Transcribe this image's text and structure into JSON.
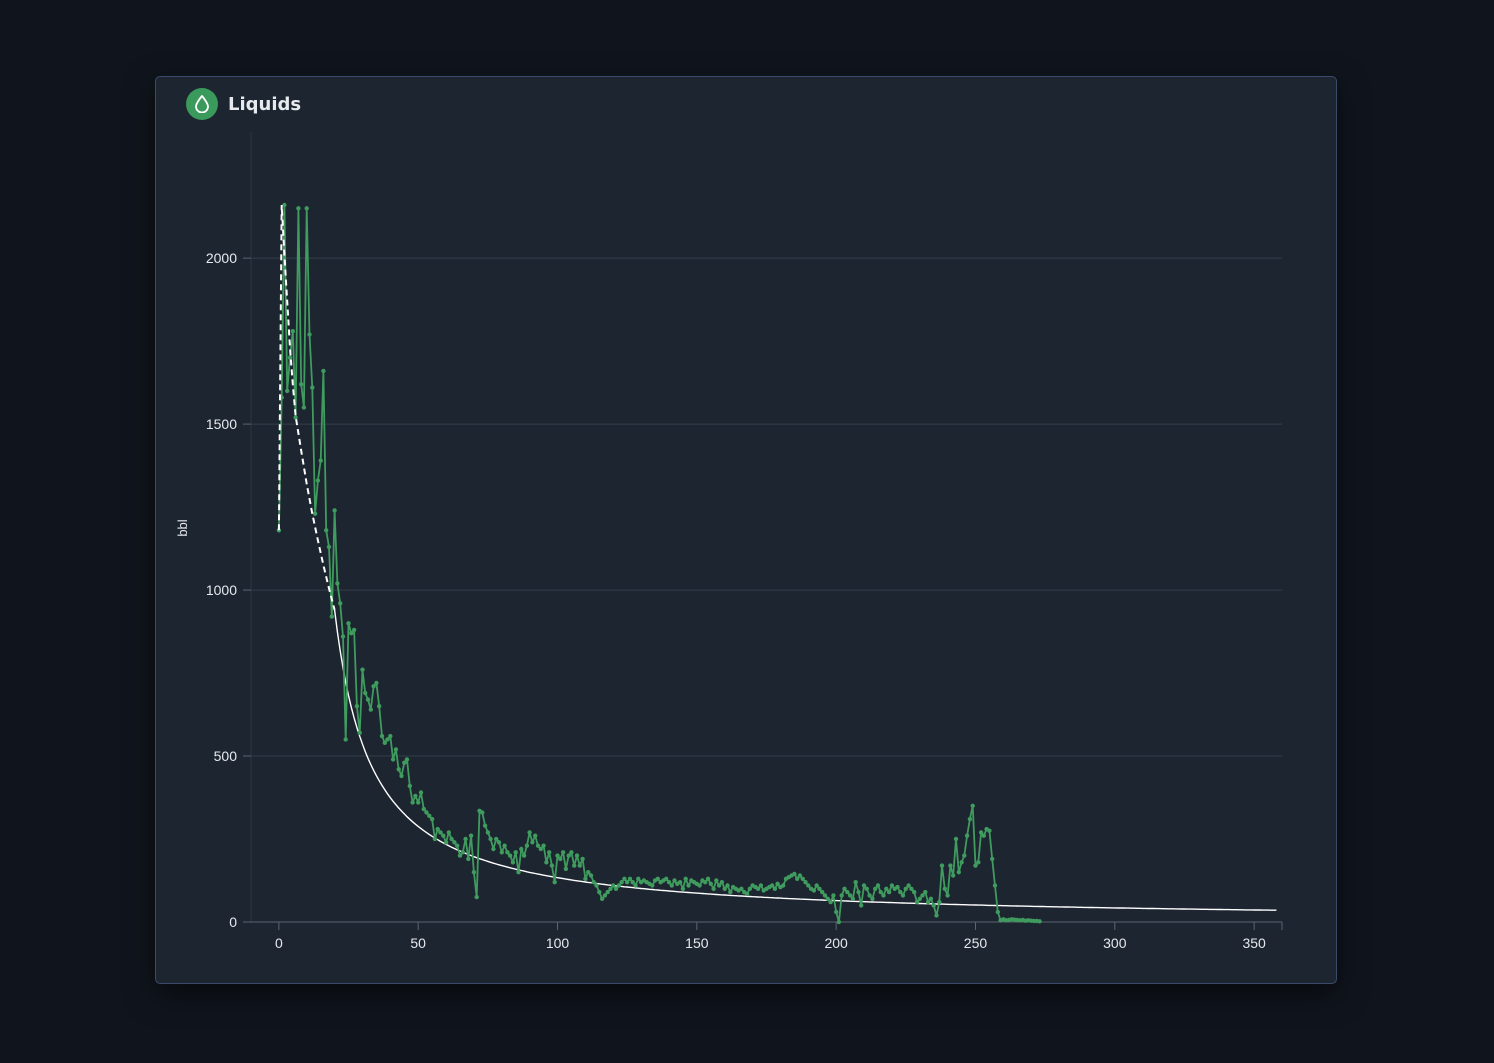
{
  "card": {
    "title": "Liquids",
    "icon": "droplet-icon"
  },
  "colors": {
    "page_bg": "#10151d",
    "card_bg": "#1d2530",
    "card_border": "#3a4a6a",
    "accent_green": "#3a9a5c",
    "series_green": "#3f9b5e",
    "fit_line": "#ffffff",
    "gridline": "#343e4b"
  },
  "chart_data": {
    "type": "line",
    "title": "",
    "xlabel": "",
    "ylabel": "bbl",
    "xlim": [
      -10,
      360
    ],
    "ylim": [
      0,
      2380
    ],
    "x_ticks": [
      0,
      50,
      100,
      150,
      200,
      250,
      300,
      350
    ],
    "y_ticks": [
      0,
      500,
      1000,
      1500,
      2000
    ],
    "grid": "horizontal",
    "series": [
      {
        "marker": "dot",
        "color": "#3f9b5e",
        "points": [
          [
            0,
            1180
          ],
          [
            1,
            1580
          ],
          [
            2,
            2160
          ],
          [
            3,
            1600
          ],
          [
            4,
            1700
          ],
          [
            5,
            1780
          ],
          [
            6,
            1520
          ],
          [
            7,
            2150
          ],
          [
            8,
            1620
          ],
          [
            9,
            1550
          ],
          [
            10,
            2150
          ],
          [
            11,
            1770
          ],
          [
            12,
            1610
          ],
          [
            13,
            1230
          ],
          [
            14,
            1330
          ],
          [
            15,
            1390
          ],
          [
            16,
            1660
          ],
          [
            17,
            1180
          ],
          [
            18,
            1130
          ],
          [
            19,
            920
          ],
          [
            20,
            1240
          ],
          [
            21,
            1020
          ],
          [
            22,
            960
          ],
          [
            23,
            860
          ],
          [
            24,
            550
          ],
          [
            25,
            900
          ],
          [
            26,
            870
          ],
          [
            27,
            880
          ],
          [
            28,
            650
          ],
          [
            29,
            570
          ],
          [
            30,
            760
          ],
          [
            31,
            690
          ],
          [
            32,
            670
          ],
          [
            33,
            640
          ],
          [
            34,
            710
          ],
          [
            35,
            720
          ],
          [
            36,
            650
          ],
          [
            37,
            560
          ],
          [
            38,
            540
          ],
          [
            39,
            550
          ],
          [
            40,
            560
          ],
          [
            41,
            490
          ],
          [
            42,
            520
          ],
          [
            43,
            460
          ],
          [
            44,
            440
          ],
          [
            45,
            480
          ],
          [
            46,
            490
          ],
          [
            47,
            410
          ],
          [
            48,
            360
          ],
          [
            49,
            380
          ],
          [
            50,
            360
          ],
          [
            51,
            390
          ],
          [
            52,
            340
          ],
          [
            53,
            330
          ],
          [
            54,
            320
          ],
          [
            55,
            310
          ],
          [
            56,
            250
          ],
          [
            57,
            280
          ],
          [
            58,
            270
          ],
          [
            59,
            260
          ],
          [
            60,
            240
          ],
          [
            61,
            270
          ],
          [
            62,
            250
          ],
          [
            63,
            240
          ],
          [
            64,
            230
          ],
          [
            65,
            200
          ],
          [
            66,
            210
          ],
          [
            67,
            250
          ],
          [
            68,
            190
          ],
          [
            69,
            260
          ],
          [
            70,
            150
          ],
          [
            71,
            75
          ],
          [
            72,
            335
          ],
          [
            73,
            330
          ],
          [
            74,
            290
          ],
          [
            75,
            270
          ],
          [
            76,
            250
          ],
          [
            77,
            220
          ],
          [
            78,
            250
          ],
          [
            79,
            240
          ],
          [
            80,
            210
          ],
          [
            81,
            230
          ],
          [
            82,
            210
          ],
          [
            83,
            200
          ],
          [
            84,
            180
          ],
          [
            85,
            210
          ],
          [
            86,
            150
          ],
          [
            87,
            220
          ],
          [
            88,
            200
          ],
          [
            89,
            230
          ],
          [
            90,
            270
          ],
          [
            91,
            240
          ],
          [
            92,
            260
          ],
          [
            93,
            230
          ],
          [
            94,
            220
          ],
          [
            95,
            230
          ],
          [
            96,
            180
          ],
          [
            97,
            210
          ],
          [
            98,
            170
          ],
          [
            99,
            120
          ],
          [
            100,
            200
          ],
          [
            101,
            190
          ],
          [
            102,
            210
          ],
          [
            103,
            160
          ],
          [
            104,
            200
          ],
          [
            105,
            210
          ],
          [
            106,
            170
          ],
          [
            107,
            200
          ],
          [
            108,
            170
          ],
          [
            109,
            190
          ],
          [
            110,
            130
          ],
          [
            111,
            150
          ],
          [
            112,
            140
          ],
          [
            113,
            120
          ],
          [
            114,
            110
          ],
          [
            115,
            90
          ],
          [
            116,
            70
          ],
          [
            117,
            80
          ],
          [
            118,
            90
          ],
          [
            119,
            100
          ],
          [
            120,
            110
          ],
          [
            121,
            100
          ],
          [
            122,
            110
          ],
          [
            123,
            120
          ],
          [
            124,
            130
          ],
          [
            125,
            120
          ],
          [
            126,
            130
          ],
          [
            127,
            120
          ],
          [
            128,
            110
          ],
          [
            129,
            130
          ],
          [
            130,
            120
          ],
          [
            131,
            125
          ],
          [
            132,
            120
          ],
          [
            133,
            115
          ],
          [
            134,
            110
          ],
          [
            135,
            125
          ],
          [
            136,
            130
          ],
          [
            137,
            120
          ],
          [
            138,
            125
          ],
          [
            139,
            130
          ],
          [
            140,
            120
          ],
          [
            141,
            110
          ],
          [
            142,
            125
          ],
          [
            143,
            115
          ],
          [
            144,
            120
          ],
          [
            145,
            100
          ],
          [
            146,
            130
          ],
          [
            147,
            110
          ],
          [
            148,
            125
          ],
          [
            149,
            120
          ],
          [
            150,
            115
          ],
          [
            151,
            110
          ],
          [
            152,
            125
          ],
          [
            153,
            120
          ],
          [
            154,
            130
          ],
          [
            155,
            115
          ],
          [
            156,
            100
          ],
          [
            157,
            125
          ],
          [
            158,
            110
          ],
          [
            159,
            120
          ],
          [
            160,
            100
          ],
          [
            161,
            110
          ],
          [
            162,
            90
          ],
          [
            163,
            105
          ],
          [
            164,
            100
          ],
          [
            165,
            95
          ],
          [
            166,
            100
          ],
          [
            167,
            90
          ],
          [
            168,
            85
          ],
          [
            169,
            100
          ],
          [
            170,
            110
          ],
          [
            171,
            105
          ],
          [
            172,
            100
          ],
          [
            173,
            110
          ],
          [
            174,
            95
          ],
          [
            175,
            100
          ],
          [
            176,
            105
          ],
          [
            177,
            110
          ],
          [
            178,
            100
          ],
          [
            179,
            115
          ],
          [
            180,
            105
          ],
          [
            181,
            110
          ],
          [
            182,
            130
          ],
          [
            183,
            135
          ],
          [
            184,
            140
          ],
          [
            185,
            145
          ],
          [
            186,
            130
          ],
          [
            187,
            140
          ],
          [
            188,
            130
          ],
          [
            189,
            120
          ],
          [
            190,
            110
          ],
          [
            191,
            100
          ],
          [
            192,
            95
          ],
          [
            193,
            110
          ],
          [
            194,
            100
          ],
          [
            195,
            90
          ],
          [
            196,
            80
          ],
          [
            197,
            70
          ],
          [
            198,
            60
          ],
          [
            199,
            80
          ],
          [
            200,
            30
          ],
          [
            201,
            0
          ],
          [
            202,
            80
          ],
          [
            203,
            100
          ],
          [
            204,
            90
          ],
          [
            205,
            80
          ],
          [
            206,
            70
          ],
          [
            207,
            120
          ],
          [
            208,
            90
          ],
          [
            209,
            50
          ],
          [
            210,
            110
          ],
          [
            211,
            100
          ],
          [
            212,
            80
          ],
          [
            213,
            70
          ],
          [
            214,
            100
          ],
          [
            215,
            110
          ],
          [
            216,
            90
          ],
          [
            217,
            80
          ],
          [
            218,
            100
          ],
          [
            219,
            90
          ],
          [
            220,
            110
          ],
          [
            221,
            100
          ],
          [
            222,
            105
          ],
          [
            223,
            90
          ],
          [
            224,
            80
          ],
          [
            225,
            100
          ],
          [
            226,
            110
          ],
          [
            227,
            100
          ],
          [
            228,
            90
          ],
          [
            229,
            60
          ],
          [
            230,
            70
          ],
          [
            231,
            80
          ],
          [
            232,
            90
          ],
          [
            233,
            60
          ],
          [
            234,
            70
          ],
          [
            235,
            50
          ],
          [
            236,
            20
          ],
          [
            237,
            60
          ],
          [
            238,
            170
          ],
          [
            239,
            100
          ],
          [
            240,
            80
          ],
          [
            241,
            170
          ],
          [
            242,
            140
          ],
          [
            243,
            250
          ],
          [
            244,
            150
          ],
          [
            245,
            180
          ],
          [
            246,
            200
          ],
          [
            247,
            260
          ],
          [
            248,
            310
          ],
          [
            249,
            350
          ],
          [
            250,
            170
          ],
          [
            251,
            180
          ],
          [
            252,
            270
          ],
          [
            253,
            260
          ],
          [
            254,
            280
          ],
          [
            255,
            275
          ],
          [
            256,
            190
          ],
          [
            257,
            110
          ],
          [
            258,
            30
          ],
          [
            259,
            5
          ],
          [
            260,
            8
          ],
          [
            261,
            5
          ],
          [
            262,
            6
          ],
          [
            263,
            8
          ],
          [
            264,
            7
          ],
          [
            265,
            6
          ],
          [
            266,
            5
          ],
          [
            267,
            6
          ],
          [
            268,
            4
          ],
          [
            269,
            5
          ],
          [
            270,
            4
          ],
          [
            271,
            3
          ],
          [
            272,
            3
          ],
          [
            273,
            2
          ]
        ]
      },
      {
        "style": "dashed",
        "color": "#ffffff",
        "points": [
          [
            0,
            1180
          ],
          [
            1,
            2160
          ],
          [
            2,
            2010
          ],
          [
            3,
            1870
          ],
          [
            4,
            1730
          ],
          [
            5,
            1620
          ],
          [
            6,
            1525
          ],
          [
            8,
            1420
          ],
          [
            10,
            1320
          ],
          [
            12,
            1230
          ],
          [
            14,
            1150
          ],
          [
            16,
            1075
          ],
          [
            18,
            1005
          ],
          [
            20,
            940
          ]
        ]
      },
      {
        "style": "solid",
        "color": "#ffffff",
        "fit": {
          "q0": 940,
          "x0": 20,
          "b": 1.0,
          "d": 0.0755,
          "x_end": 358
        }
      }
    ]
  }
}
